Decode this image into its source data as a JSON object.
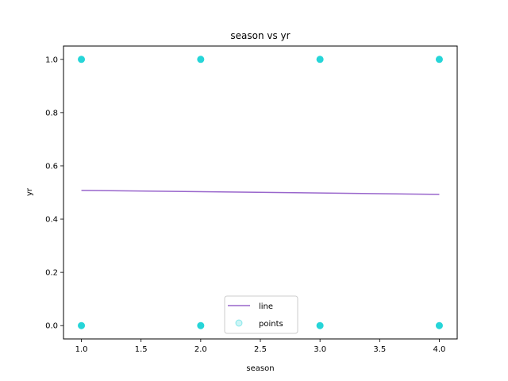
{
  "chart_data": {
    "type": "scatter",
    "title": "season vs yr",
    "xlabel": "season",
    "ylabel": "yr",
    "xlim": [
      0.85,
      4.15
    ],
    "ylim": [
      -0.05,
      1.05
    ],
    "xticks": [
      1.0,
      1.5,
      2.0,
      2.5,
      3.0,
      3.5,
      4.0
    ],
    "xtick_labels": [
      "1.0",
      "1.5",
      "2.0",
      "2.5",
      "3.0",
      "3.5",
      "4.0"
    ],
    "yticks": [
      0.0,
      0.2,
      0.4,
      0.6,
      0.8,
      1.0
    ],
    "ytick_labels": [
      "0.0",
      "0.2",
      "0.4",
      "0.6",
      "0.8",
      "1.0"
    ],
    "grid": false,
    "legend_position": "lower center",
    "series": [
      {
        "name": "line",
        "kind": "line",
        "color": "#9966cc",
        "x": [
          1.0,
          4.0
        ],
        "y": [
          0.508,
          0.493
        ]
      },
      {
        "name": "points",
        "kind": "scatter",
        "color": "#00ced1",
        "x": [
          1,
          1,
          2,
          2,
          3,
          3,
          4,
          4
        ],
        "y": [
          0,
          1,
          0,
          1,
          0,
          1,
          0,
          1
        ]
      }
    ]
  }
}
